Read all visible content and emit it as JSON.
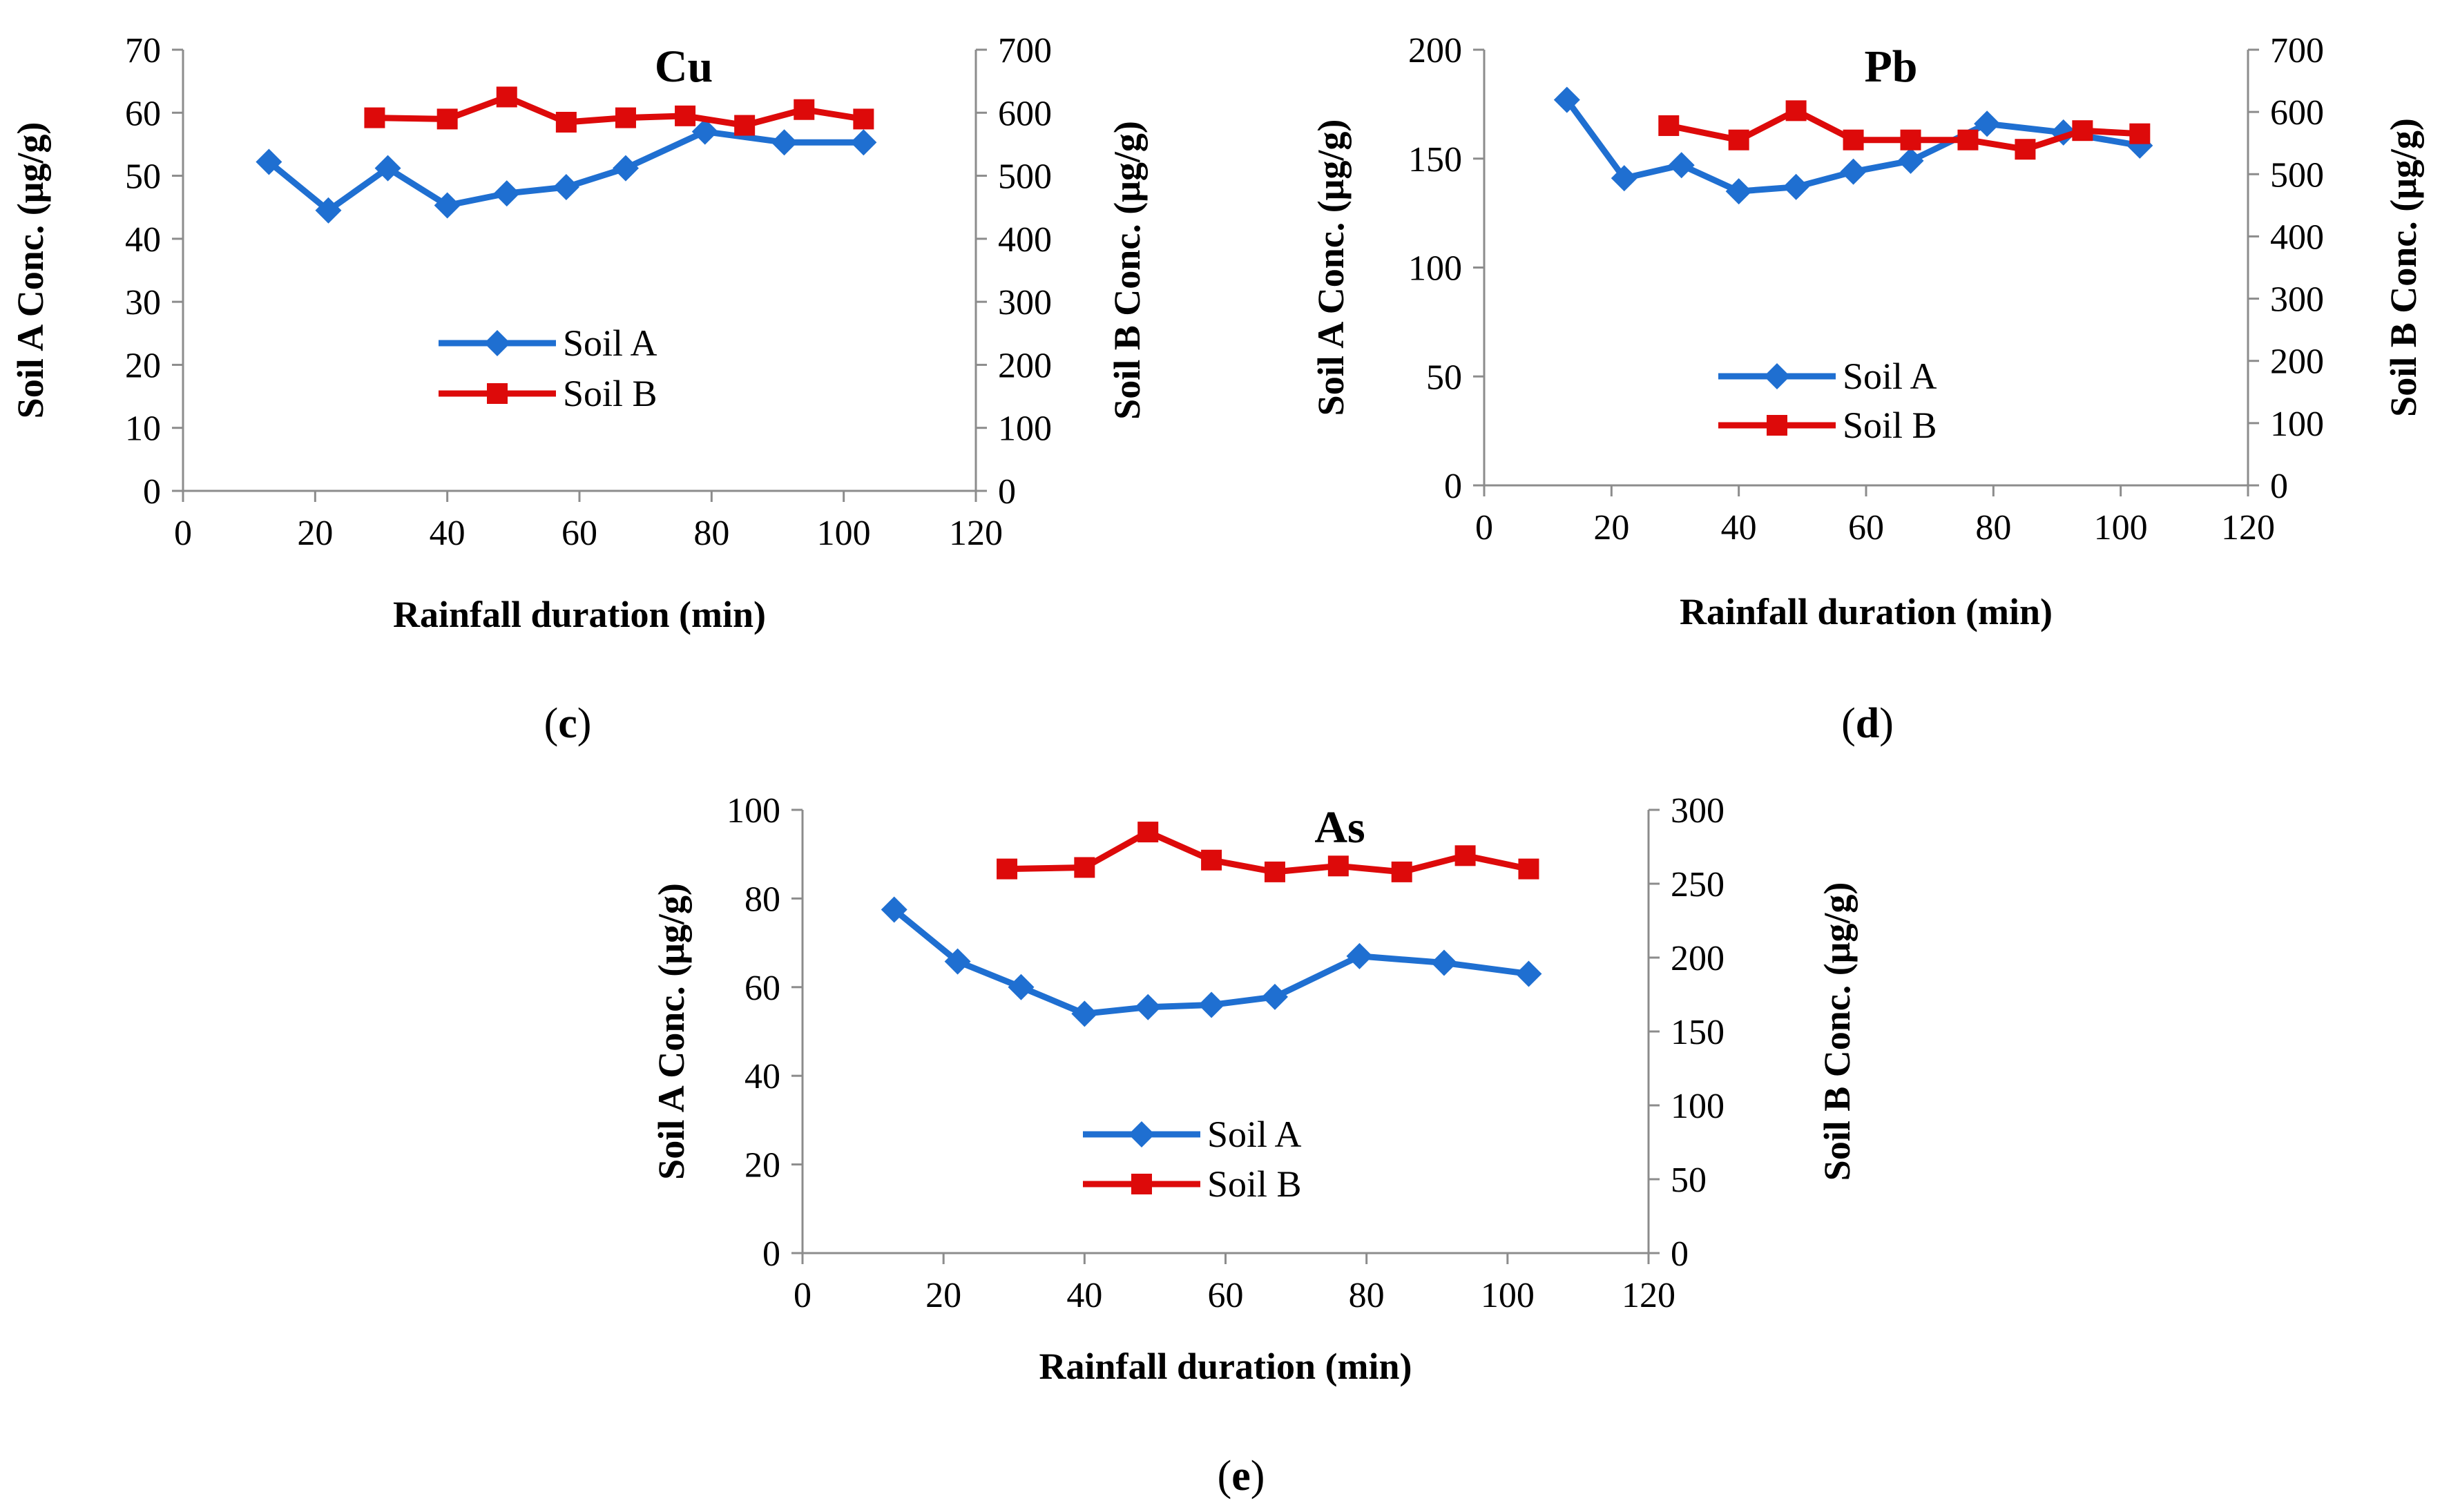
{
  "colors": {
    "soil_a": "#1f6fd1",
    "soil_b": "#dd0a0a",
    "axis": "#8c8c8c"
  },
  "chart_data": [
    {
      "id": "c",
      "type": "line",
      "title": "Cu",
      "panel_label": "c",
      "xlabel": "Rainfall duration (min)",
      "ylabel_left": "Soil A Conc. (μg/g)",
      "ylabel_right": "Soil B Conc. (μg/g)",
      "xlim": [
        0,
        120
      ],
      "x_ticks": [
        "0",
        "20",
        "40",
        "60",
        "80",
        "100",
        "120"
      ],
      "ylim_left": [
        0,
        70
      ],
      "y_ticks_left": [
        "0",
        "10",
        "20",
        "30",
        "40",
        "50",
        "60",
        "70"
      ],
      "ylim_right": [
        0,
        700
      ],
      "y_ticks_right": [
        "0",
        "100",
        "200",
        "300",
        "400",
        "500",
        "600",
        "700"
      ],
      "legend_position": "center-left",
      "series": [
        {
          "name": "Soil A",
          "axis": "left",
          "marker": "diamond",
          "x": [
            13,
            22,
            31,
            40,
            49,
            58,
            67,
            79,
            91,
            103
          ],
          "values": [
            52.2,
            44.5,
            51.2,
            45.3,
            47.2,
            48.2,
            51.2,
            57.0,
            55.3,
            55.3
          ]
        },
        {
          "name": "Soil B",
          "axis": "right",
          "marker": "square",
          "x": [
            29,
            40,
            49,
            58,
            67,
            76,
            85,
            94,
            103
          ],
          "values": [
            592,
            590,
            625,
            585,
            592,
            595,
            580,
            605,
            590
          ]
        }
      ]
    },
    {
      "id": "d",
      "type": "line",
      "title": "Pb",
      "panel_label": "d",
      "xlabel": "Rainfall duration (min)",
      "ylabel_left": "Soil A Conc. (μg/g)",
      "ylabel_right": "Soil B Conc. (μg/g)",
      "xlim": [
        0,
        120
      ],
      "x_ticks": [
        "0",
        "20",
        "40",
        "60",
        "80",
        "100",
        "120"
      ],
      "ylim_left": [
        0,
        200
      ],
      "y_ticks_left": [
        "0",
        "50",
        "100",
        "150",
        "200"
      ],
      "ylim_right": [
        0,
        700
      ],
      "y_ticks_right": [
        "0",
        "100",
        "200",
        "300",
        "400",
        "500",
        "600",
        "700"
      ],
      "legend_position": "bottom-center",
      "series": [
        {
          "name": "Soil A",
          "axis": "left",
          "marker": "diamond",
          "x": [
            13,
            22,
            31,
            40,
            49,
            58,
            67,
            79,
            91,
            103
          ],
          "values": [
            177,
            141,
            147,
            135,
            137,
            144,
            149,
            166,
            162,
            156
          ]
        },
        {
          "name": "Soil B",
          "axis": "right",
          "marker": "square",
          "x": [
            29,
            40,
            49,
            58,
            67,
            76,
            85,
            94,
            103
          ],
          "values": [
            578,
            555,
            602,
            555,
            555,
            555,
            540,
            570,
            565
          ]
        }
      ]
    },
    {
      "id": "e",
      "type": "line",
      "title": "As",
      "panel_label": "e",
      "xlabel": "Rainfall duration (min)",
      "ylabel_left": "Soil A Conc. (μg/g)",
      "ylabel_right": "Soil B Conc. (μg/g)",
      "xlim": [
        0,
        120
      ],
      "x_ticks": [
        "0",
        "20",
        "40",
        "60",
        "80",
        "100",
        "120"
      ],
      "ylim_left": [
        0,
        100
      ],
      "y_ticks_left": [
        "0",
        "20",
        "40",
        "60",
        "80",
        "100"
      ],
      "ylim_right": [
        0,
        300
      ],
      "y_ticks_right": [
        "0",
        "50",
        "100",
        "150",
        "200",
        "250",
        "300"
      ],
      "legend_position": "center-left",
      "series": [
        {
          "name": "Soil A",
          "axis": "left",
          "marker": "diamond",
          "x": [
            13,
            22,
            31,
            40,
            49,
            58,
            67,
            79,
            91,
            103
          ],
          "values": [
            77.5,
            65.8,
            60.0,
            54.0,
            55.5,
            56.0,
            57.8,
            67.0,
            65.5,
            63.0
          ]
        },
        {
          "name": "Soil B",
          "axis": "right",
          "marker": "square",
          "x": [
            29,
            40,
            49,
            58,
            67,
            76,
            85,
            94,
            103
          ],
          "values": [
            260,
            261,
            285,
            266,
            258,
            262,
            258,
            269,
            260
          ]
        }
      ]
    }
  ]
}
